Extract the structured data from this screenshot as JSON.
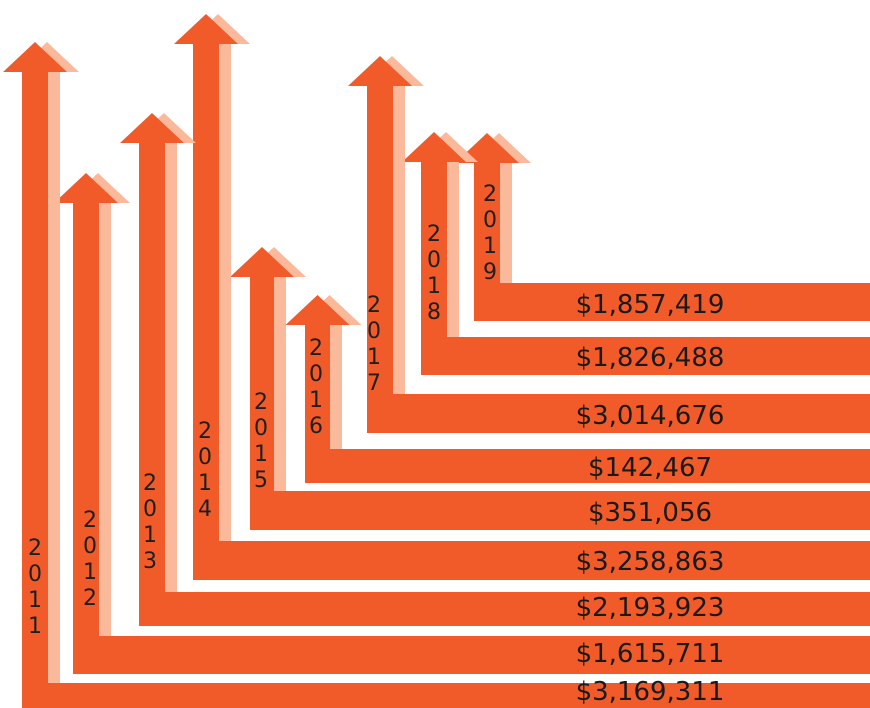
{
  "chart_data": {
    "type": "bar",
    "title": "",
    "xlabel": "",
    "ylabel": "",
    "colors": {
      "arrow": "#f15a29",
      "shadow": "#f9b99a",
      "text": "#1a1a1a"
    },
    "categories": [
      "2011",
      "2012",
      "2013",
      "2014",
      "2015",
      "2016",
      "2017",
      "2018",
      "2019"
    ],
    "values": [
      3169311,
      1615711,
      2193923,
      3258863,
      351056,
      142467,
      3014676,
      1826488,
      1857419
    ],
    "labels": [
      "$3,169,311",
      "$1,615,711",
      "$2,193,923",
      "$3,258,863",
      "$351,056",
      "$142,467",
      "$3,014,676",
      "$1,826,488",
      "$1,857,419"
    ]
  }
}
